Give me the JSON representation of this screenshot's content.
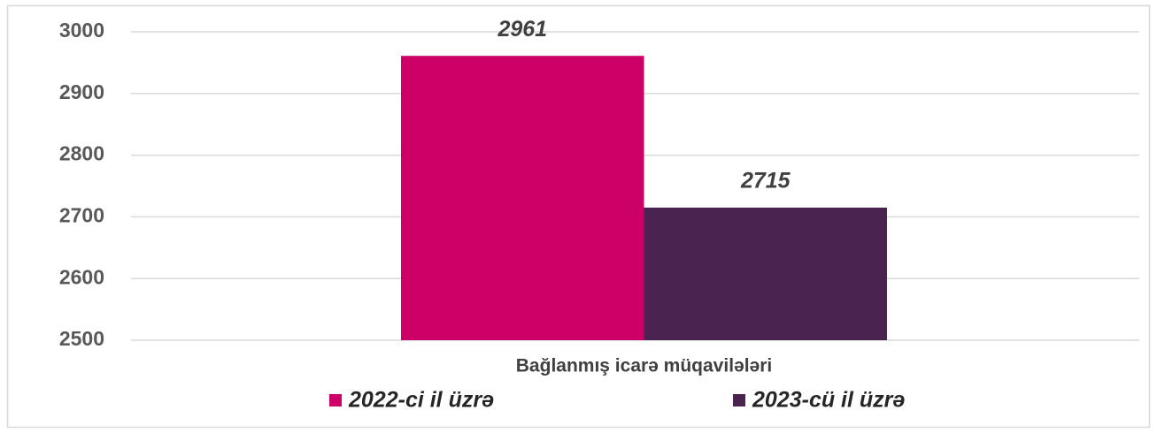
{
  "chart_data": {
    "type": "bar",
    "categories": [
      "Bağlanmış icarə müqavilələri"
    ],
    "series": [
      {
        "name": "2022-ci il üzrə",
        "color": "#cc0066",
        "values": [
          2961
        ]
      },
      {
        "name": "2023-cü il üzrə",
        "color": "#4a2350",
        "values": [
          2715
        ]
      }
    ],
    "ylim": [
      2500,
      3000
    ],
    "yticks": [
      2500,
      2600,
      2700,
      2800,
      2900,
      3000
    ],
    "grid": true,
    "legend": "bottom"
  }
}
